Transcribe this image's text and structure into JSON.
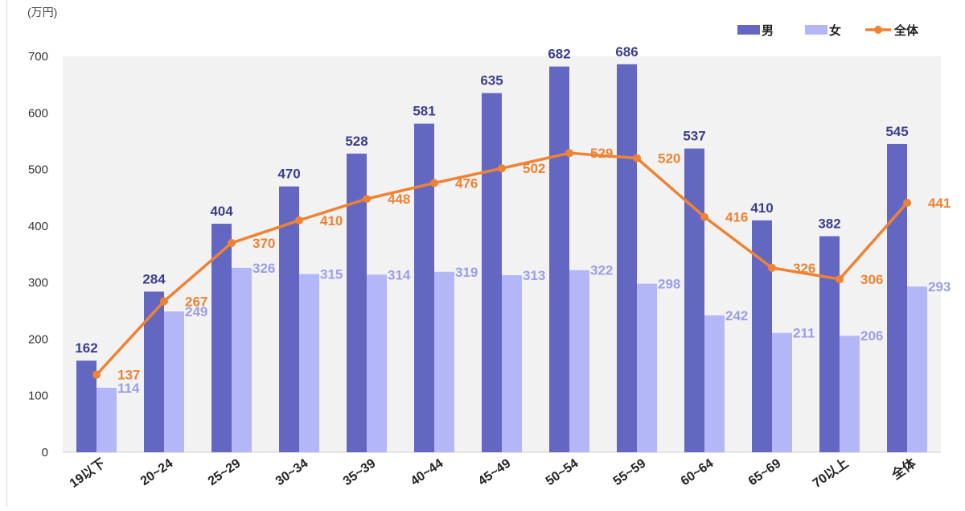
{
  "chart_data": {
    "type": "bar",
    "unit_label": "(万円)",
    "categories": [
      "19以下",
      "20~24",
      "25~29",
      "30~34",
      "35~39",
      "40~44",
      "45~49",
      "50~54",
      "55~59",
      "60~64",
      "65~69",
      "70以上",
      "全体"
    ],
    "series": [
      {
        "name": "男",
        "type": "bar",
        "color": "#6467c1",
        "label_color": "#3b3d8c",
        "values": [
          162,
          284,
          404,
          470,
          528,
          581,
          635,
          682,
          686,
          537,
          410,
          382,
          545
        ]
      },
      {
        "name": "女",
        "type": "bar",
        "color": "#b4b7f7",
        "label_color": "#9b9ee8",
        "values": [
          114,
          249,
          326,
          315,
          314,
          319,
          313,
          322,
          298,
          242,
          211,
          206,
          293
        ]
      },
      {
        "name": "全体",
        "type": "line",
        "color": "#ef8233",
        "label_color": "#ef8233",
        "values": [
          137,
          267,
          370,
          410,
          448,
          476,
          502,
          529,
          520,
          416,
          326,
          306,
          441
        ]
      }
    ],
    "ylim": [
      0,
      700
    ],
    "yticks": [
      "0",
      "100",
      "200",
      "300",
      "400",
      "500",
      "600",
      "700"
    ],
    "grid": false,
    "legend_position": "top-right",
    "plot_background": "#f2f2f2"
  }
}
